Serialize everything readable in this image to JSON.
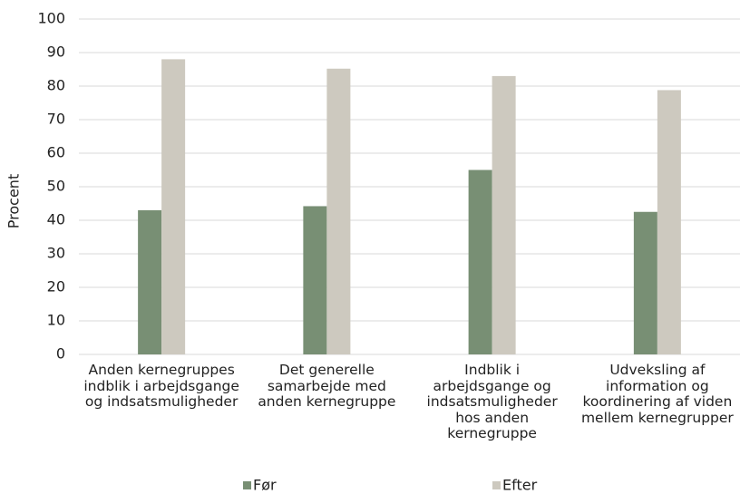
{
  "chart_data": {
    "type": "bar",
    "y_label": "Procent",
    "categories": [
      "Anden kernegruppes indblik i arbejdsgange og indsatsmuligheder",
      "Det generelle samarbejde med anden kernegruppe",
      "Indblik i arbejdsgange og indsatsmuligheder hos anden kernegruppe",
      "Udveksling af information og koordinering af viden mellem kernegrupper"
    ],
    "series": [
      {
        "name": "Før",
        "color": "#788f74",
        "values": [
          43,
          44.2,
          55,
          42.5
        ]
      },
      {
        "name": "Efter",
        "color": "#cdc9bf",
        "values": [
          88,
          85.2,
          83,
          78.8
        ]
      }
    ],
    "ylim": [
      0,
      100
    ],
    "yticks": [
      0,
      10,
      20,
      30,
      40,
      50,
      60,
      70,
      80,
      90,
      100
    ],
    "grid": true,
    "legend": "bottom"
  }
}
